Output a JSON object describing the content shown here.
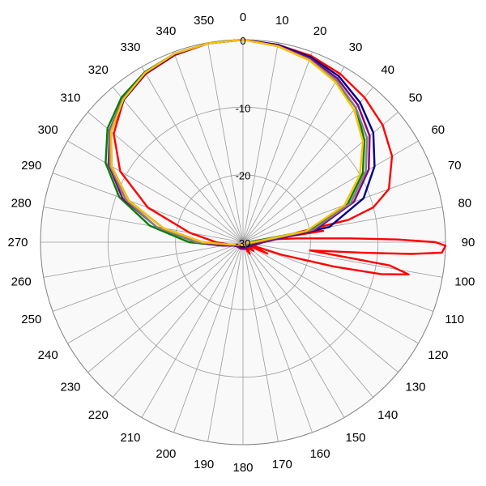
{
  "chart_data": {
    "type": "polar-line",
    "title": "",
    "angle_ticks": [
      "0",
      "10",
      "20",
      "30",
      "40",
      "50",
      "60",
      "70",
      "80",
      "90",
      "100",
      "110",
      "120",
      "130",
      "140",
      "150",
      "160",
      "170",
      "180",
      "190",
      "200",
      "210",
      "220",
      "230",
      "240",
      "250",
      "260",
      "270",
      "280",
      "290",
      "300",
      "310",
      "320",
      "330",
      "340",
      "350"
    ],
    "radial_ticks": [
      "0",
      "-10",
      "-20",
      "-30"
    ],
    "radial_range": [
      -30,
      0
    ],
    "grid": true,
    "series": [
      {
        "color": "#ff0000",
        "points": [
          [
            0,
            0
          ],
          [
            10,
            -0.3
          ],
          [
            20,
            -0.6
          ],
          [
            30,
            -1.2
          ],
          [
            40,
            -2
          ],
          [
            50,
            -3
          ],
          [
            60,
            -4.5
          ],
          [
            70,
            -7
          ],
          [
            75,
            -10
          ],
          [
            78,
            -14
          ],
          [
            80,
            -22
          ],
          [
            82,
            -18
          ],
          [
            84,
            -26
          ],
          [
            86,
            -22
          ],
          [
            88,
            -14
          ],
          [
            89,
            -7
          ],
          [
            90,
            -1.5
          ],
          [
            91,
            0
          ],
          [
            93,
            -0.5
          ],
          [
            94,
            -5
          ],
          [
            95,
            -12
          ],
          [
            97,
            -20
          ],
          [
            99,
            -8
          ],
          [
            101,
            -5
          ],
          [
            103,
            -9
          ],
          [
            105,
            -16
          ],
          [
            108,
            -24
          ],
          [
            110,
            -29
          ],
          [
            115,
            -26
          ],
          [
            120,
            -29
          ],
          [
            130,
            -28
          ],
          [
            140,
            -29
          ],
          [
            150,
            -28
          ],
          [
            160,
            -29
          ],
          [
            170,
            -29
          ],
          [
            180,
            -29.5
          ],
          [
            190,
            -29
          ],
          [
            200,
            -29
          ],
          [
            210,
            -29.5
          ],
          [
            220,
            -29
          ],
          [
            230,
            -29
          ],
          [
            240,
            -29
          ],
          [
            250,
            -29
          ],
          [
            260,
            -28
          ],
          [
            270,
            -26
          ],
          [
            280,
            -22
          ],
          [
            290,
            -15
          ],
          [
            300,
            -9
          ],
          [
            310,
            -5
          ],
          [
            320,
            -2.5
          ],
          [
            330,
            -1.2
          ],
          [
            340,
            -0.5
          ],
          [
            350,
            -0.1
          ],
          [
            360,
            0
          ]
        ]
      },
      {
        "color": "#008000",
        "points": [
          [
            0,
            0
          ],
          [
            10,
            -0.5
          ],
          [
            20,
            -1.3
          ],
          [
            30,
            -2.5
          ],
          [
            40,
            -4
          ],
          [
            50,
            -6.5
          ],
          [
            60,
            -9.5
          ],
          [
            70,
            -13.5
          ],
          [
            80,
            -20
          ],
          [
            90,
            -29
          ],
          [
            100,
            -28
          ],
          [
            120,
            -29
          ],
          [
            150,
            -29
          ],
          [
            180,
            -29.5
          ],
          [
            210,
            -29
          ],
          [
            240,
            -29
          ],
          [
            260,
            -27
          ],
          [
            270,
            -22
          ],
          [
            280,
            -16
          ],
          [
            290,
            -10.5
          ],
          [
            300,
            -6.5
          ],
          [
            310,
            -3.8
          ],
          [
            320,
            -2
          ],
          [
            330,
            -0.9
          ],
          [
            340,
            -0.3
          ],
          [
            350,
            -0.1
          ],
          [
            360,
            0
          ]
        ]
      },
      {
        "color": "#00008b",
        "points": [
          [
            0,
            0
          ],
          [
            10,
            -0.3
          ],
          [
            20,
            -0.8
          ],
          [
            30,
            -1.6
          ],
          [
            40,
            -3
          ],
          [
            50,
            -4.8
          ],
          [
            60,
            -7.5
          ],
          [
            70,
            -11
          ],
          [
            80,
            -17
          ],
          [
            90,
            -27
          ],
          [
            100,
            -29
          ],
          [
            130,
            -29
          ],
          [
            160,
            -29
          ],
          [
            180,
            -29.5
          ],
          [
            200,
            -29
          ],
          [
            230,
            -29
          ],
          [
            260,
            -28
          ],
          [
            270,
            -24
          ],
          [
            280,
            -18
          ],
          [
            290,
            -12
          ],
          [
            300,
            -7.5
          ],
          [
            310,
            -4.5
          ],
          [
            320,
            -2.5
          ],
          [
            330,
            -1.1
          ],
          [
            340,
            -0.4
          ],
          [
            350,
            -0.1
          ],
          [
            360,
            0
          ]
        ]
      },
      {
        "color": "#800080",
        "points": [
          [
            0,
            0
          ],
          [
            10,
            -0.4
          ],
          [
            20,
            -1
          ],
          [
            30,
            -2
          ],
          [
            40,
            -3.5
          ],
          [
            50,
            -5.5
          ],
          [
            60,
            -8.5
          ],
          [
            70,
            -12.5
          ],
          [
            80,
            -19
          ],
          [
            90,
            -27
          ],
          [
            100,
            -28
          ],
          [
            130,
            -29
          ],
          [
            160,
            -29
          ],
          [
            180,
            -29
          ],
          [
            210,
            -29
          ],
          [
            240,
            -29
          ],
          [
            260,
            -27
          ],
          [
            270,
            -23
          ],
          [
            280,
            -17
          ],
          [
            290,
            -11
          ],
          [
            300,
            -7
          ],
          [
            310,
            -4.2
          ],
          [
            320,
            -2.3
          ],
          [
            330,
            -1
          ],
          [
            340,
            -0.3
          ],
          [
            350,
            -0.1
          ],
          [
            360,
            0
          ]
        ]
      },
      {
        "color": "#808080",
        "points": [
          [
            0,
            0
          ],
          [
            10,
            -0.5
          ],
          [
            20,
            -1.2
          ],
          [
            30,
            -2.3
          ],
          [
            40,
            -4
          ],
          [
            50,
            -6
          ],
          [
            60,
            -9
          ],
          [
            70,
            -13
          ],
          [
            80,
            -19.5
          ],
          [
            90,
            -28
          ],
          [
            100,
            -29
          ],
          [
            150,
            -29.5
          ],
          [
            180,
            -29.5
          ],
          [
            220,
            -29.5
          ],
          [
            260,
            -28
          ],
          [
            270,
            -23
          ],
          [
            280,
            -17
          ],
          [
            290,
            -11.5
          ],
          [
            300,
            -7.2
          ],
          [
            310,
            -4.3
          ],
          [
            320,
            -2.3
          ],
          [
            330,
            -1
          ],
          [
            340,
            -0.3
          ],
          [
            350,
            -0.1
          ],
          [
            360,
            0
          ]
        ]
      },
      {
        "color": "#ffc000",
        "points": [
          [
            0,
            0
          ],
          [
            10,
            -0.5
          ],
          [
            20,
            -1.3
          ],
          [
            30,
            -2.6
          ],
          [
            40,
            -4.4
          ],
          [
            50,
            -6.8
          ],
          [
            60,
            -10
          ],
          [
            70,
            -14
          ],
          [
            80,
            -20.5
          ],
          [
            90,
            -28.5
          ],
          [
            100,
            -29.5
          ],
          [
            150,
            -29.5
          ],
          [
            180,
            -29.5
          ],
          [
            210,
            -29.5
          ],
          [
            250,
            -29
          ],
          [
            260,
            -28
          ],
          [
            270,
            -24
          ],
          [
            280,
            -18
          ],
          [
            290,
            -12
          ],
          [
            300,
            -7.5
          ],
          [
            310,
            -4.5
          ],
          [
            320,
            -2.4
          ],
          [
            330,
            -1
          ],
          [
            340,
            -0.3
          ],
          [
            350,
            -0.1
          ],
          [
            360,
            0
          ]
        ]
      }
    ]
  }
}
